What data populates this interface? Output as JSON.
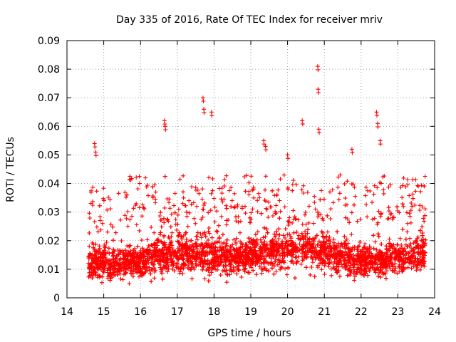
{
  "chart_data": {
    "type": "scatter",
    "title": "Day 335 of 2016, Rate Of TEC Index for receiver mriv",
    "xlabel": "GPS time / hours",
    "ylabel": "ROTI / TECUs",
    "xlim": [
      14,
      24
    ],
    "ylim": [
      0,
      0.09
    ],
    "xticks": [
      "14",
      "15",
      "16",
      "17",
      "18",
      "19",
      "20",
      "21",
      "22",
      "23",
      "24"
    ],
    "yticks": [
      "0",
      "0.01",
      "0.02",
      "0.03",
      "0.04",
      "0.05",
      "0.06",
      "0.07",
      "0.08",
      "0.09"
    ],
    "marker": "+",
    "color": "#ff0000",
    "grid": true,
    "data_x_range": [
      14.58,
      23.75
    ],
    "series": [
      {
        "name": "ROTI",
        "notable_points": [
          {
            "x": 14.75,
            "y": 0.054
          },
          {
            "x": 14.78,
            "y": 0.051
          },
          {
            "x": 16.65,
            "y": 0.062
          },
          {
            "x": 16.67,
            "y": 0.06
          },
          {
            "x": 17.7,
            "y": 0.07
          },
          {
            "x": 17.72,
            "y": 0.066
          },
          {
            "x": 17.93,
            "y": 0.065
          },
          {
            "x": 19.35,
            "y": 0.055
          },
          {
            "x": 19.4,
            "y": 0.053
          },
          {
            "x": 20.0,
            "y": 0.05
          },
          {
            "x": 20.4,
            "y": 0.062
          },
          {
            "x": 20.82,
            "y": 0.081
          },
          {
            "x": 20.83,
            "y": 0.073
          },
          {
            "x": 20.85,
            "y": 0.059
          },
          {
            "x": 21.75,
            "y": 0.052
          },
          {
            "x": 22.42,
            "y": 0.065
          },
          {
            "x": 22.45,
            "y": 0.061
          },
          {
            "x": 22.52,
            "y": 0.055
          }
        ],
        "trend": [
          {
            "x": 14.6,
            "mean": 0.012,
            "spread": 0.006
          },
          {
            "x": 15.0,
            "mean": 0.013,
            "spread": 0.008
          },
          {
            "x": 15.5,
            "mean": 0.012,
            "spread": 0.007
          },
          {
            "x": 16.0,
            "mean": 0.013,
            "spread": 0.007
          },
          {
            "x": 16.5,
            "mean": 0.015,
            "spread": 0.009
          },
          {
            "x": 17.0,
            "mean": 0.016,
            "spread": 0.009
          },
          {
            "x": 17.5,
            "mean": 0.015,
            "spread": 0.009
          },
          {
            "x": 18.0,
            "mean": 0.015,
            "spread": 0.008
          },
          {
            "x": 18.5,
            "mean": 0.014,
            "spread": 0.007
          },
          {
            "x": 19.0,
            "mean": 0.015,
            "spread": 0.008
          },
          {
            "x": 19.5,
            "mean": 0.016,
            "spread": 0.008
          },
          {
            "x": 20.0,
            "mean": 0.017,
            "spread": 0.009
          },
          {
            "x": 20.5,
            "mean": 0.018,
            "spread": 0.009
          },
          {
            "x": 21.0,
            "mean": 0.016,
            "spread": 0.009
          },
          {
            "x": 21.5,
            "mean": 0.014,
            "spread": 0.008
          },
          {
            "x": 22.0,
            "mean": 0.013,
            "spread": 0.007
          },
          {
            "x": 22.5,
            "mean": 0.013,
            "spread": 0.007
          },
          {
            "x": 23.0,
            "mean": 0.014,
            "spread": 0.007
          },
          {
            "x": 23.5,
            "mean": 0.015,
            "spread": 0.008
          },
          {
            "x": 23.75,
            "mean": 0.016,
            "spread": 0.008
          }
        ]
      }
    ]
  }
}
